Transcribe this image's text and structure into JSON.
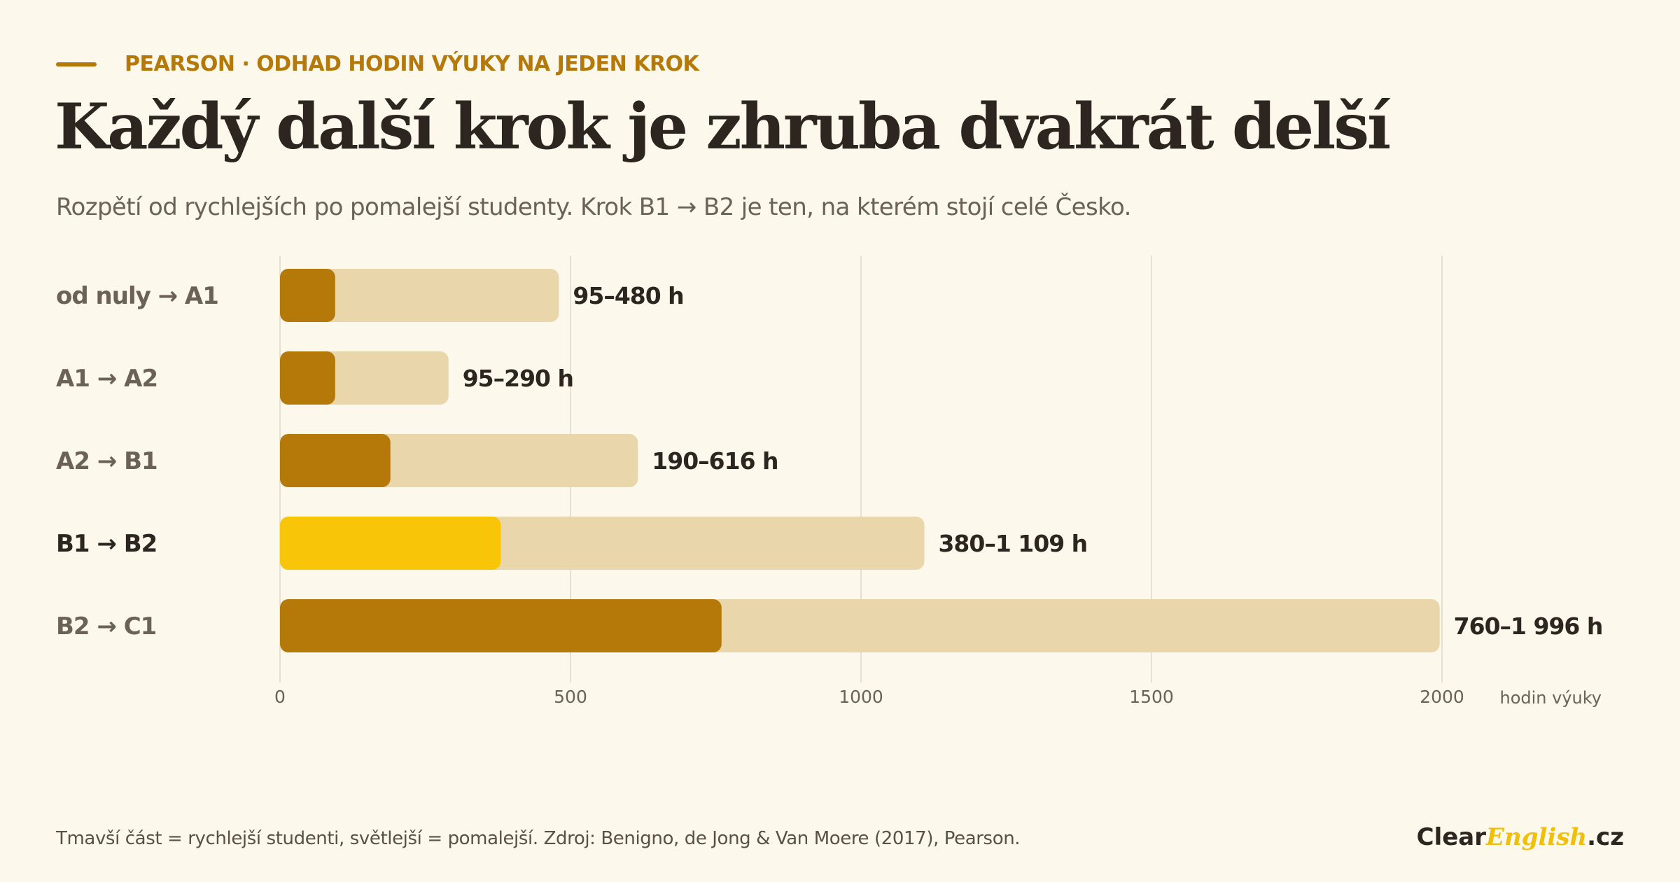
{
  "header": {
    "eyebrow": "PEARSON · ODHAD HODIN VÝUKY NA JEDEN KROK",
    "title": "Každý další krok je zhruba dvakrát delší",
    "subtitle": "Rozpětí od rychlejších po pomalejší studenty. Krok B1 → B2 je ten, na kterém stojí celé Česko."
  },
  "footer": {
    "note": "Tmavší část = rychlejší studenti, světlejší = pomalejší. Zdroj: Benigno, de Jong & Van Moere (2017), Pearson.",
    "brand_start": "Clear",
    "brand_mid": "English",
    "brand_end": ".cz"
  },
  "colors": {
    "background": "#fcf8ec",
    "fast": "#b5790a",
    "slow": "#e9d6ab",
    "highlight": "#f8c508",
    "grid": "#e6e0d2",
    "label_muted": "#6b6158",
    "label_strong": "#2d2620"
  },
  "chart_data": {
    "type": "bar",
    "orientation": "horizontal",
    "stacked_range": true,
    "categories": [
      "od nuly → A1",
      "A1 → A2",
      "A2 → B1",
      "B1 → B2",
      "B2 → C1"
    ],
    "series": [
      {
        "name": "rychlejší studenti",
        "values": [
          95,
          95,
          190,
          380,
          760
        ]
      },
      {
        "name": "pomalejší studenti",
        "values": [
          480,
          290,
          616,
          1109,
          1996
        ]
      }
    ],
    "value_labels": [
      "95–480 h",
      "95–290 h",
      "190–616 h",
      "380–1 109 h",
      "760–1 996 h"
    ],
    "highlight_category": "B1 → B2",
    "x_ticks": [
      0,
      500,
      1000,
      1500,
      2000
    ],
    "xlabel": "hodin výuky",
    "xlim": [
      0,
      2000
    ],
    "grid": true
  }
}
